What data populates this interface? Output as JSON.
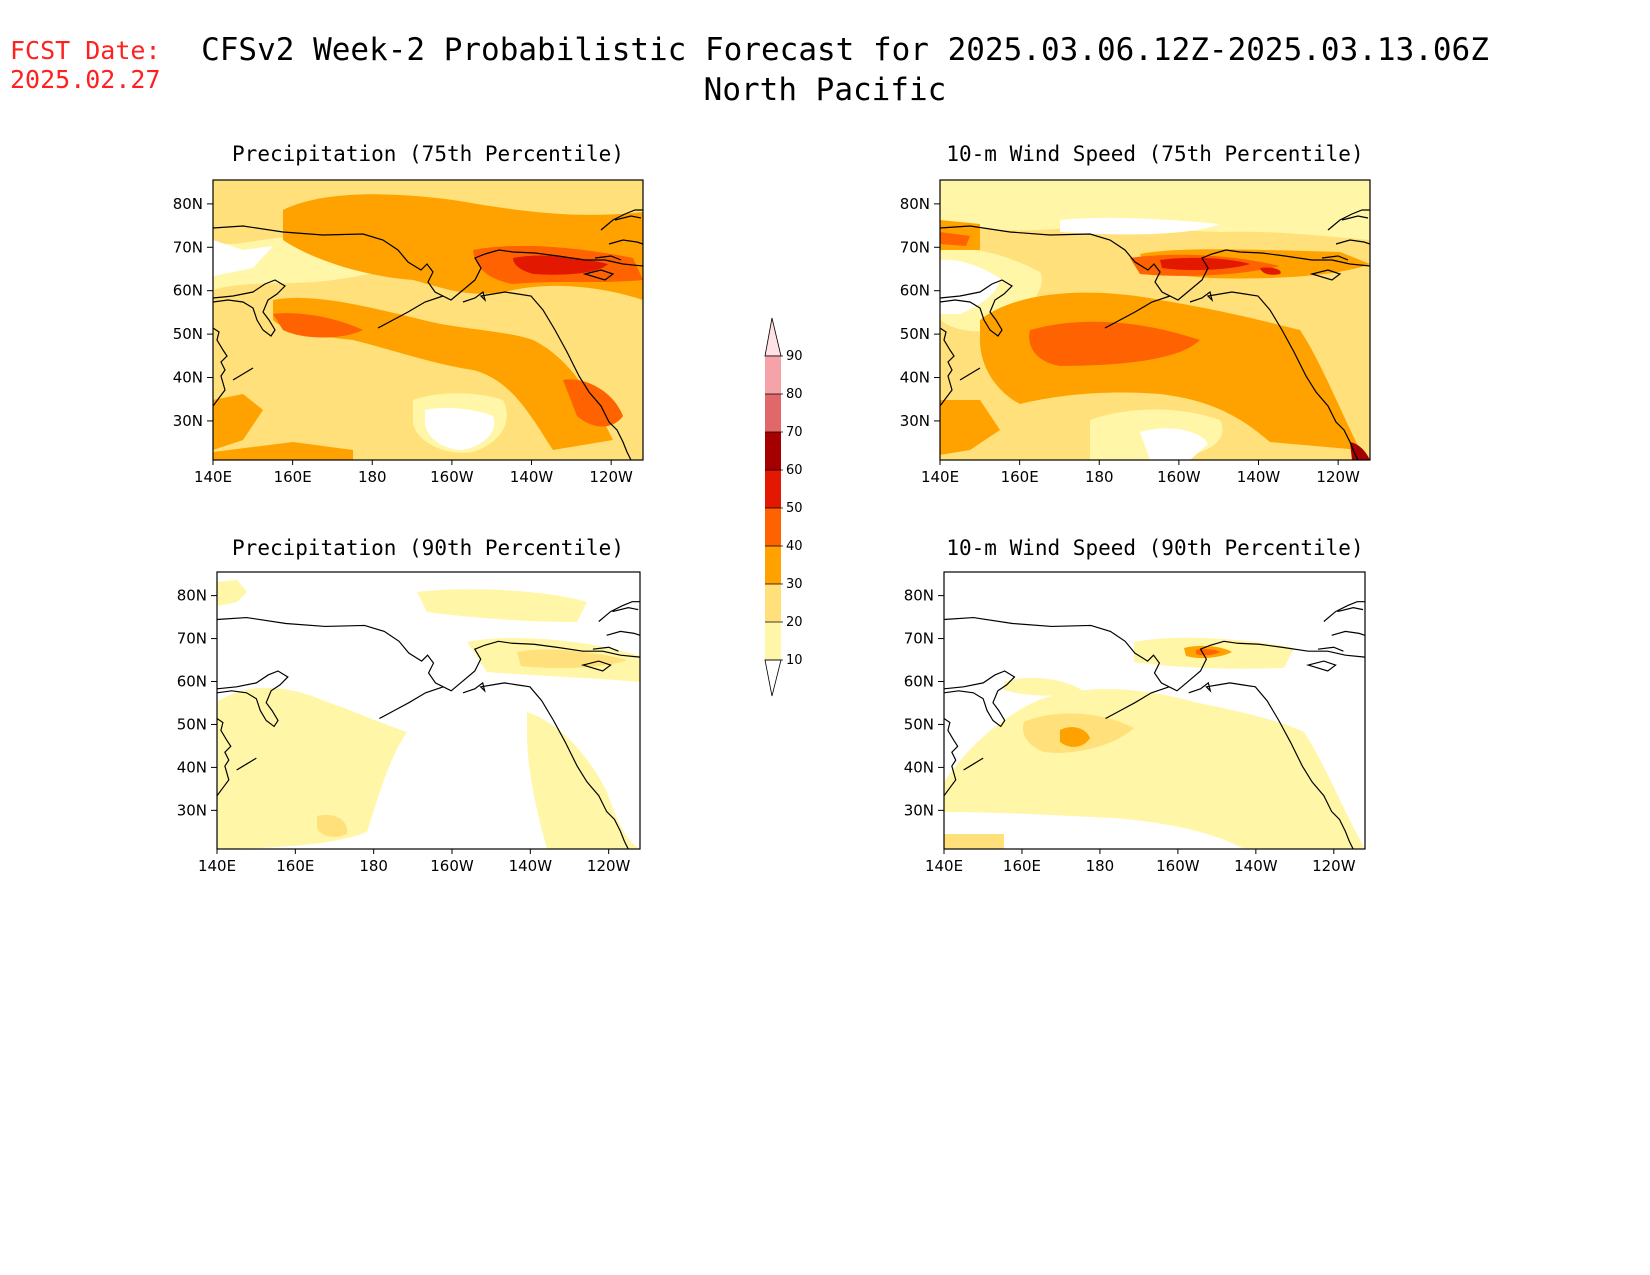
{
  "fcst_label": "FCST Date:",
  "fcst_date": "2025.02.27",
  "title_line1": "CFSv2 Week-2 Probabilistic Forecast for 2025.03.06.12Z-2025.03.13.06Z",
  "title_line2": "North Pacific",
  "colors": {
    "bin_10_20": "#fff6a8",
    "bin_20_30": "#ffe07a",
    "bin_30_40": "#ffa200",
    "bin_40_50": "#ff6200",
    "bin_50_60": "#e21800",
    "bin_60_70": "#a50000",
    "bin_70_80": "#e06868",
    "bin_80_90": "#f5a3a8",
    "bin_90_100": "#ffe0e4"
  },
  "colorbar": {
    "ticks": [
      "10",
      "20",
      "30",
      "40",
      "50",
      "60",
      "70",
      "80",
      "90"
    ]
  },
  "panels": [
    {
      "title": "Precipitation (75th Percentile)",
      "xticks": [
        "140E",
        "160E",
        "180",
        "160W",
        "140W",
        "120W"
      ],
      "yticks": [
        "80N",
        "70N",
        "60N",
        "50N",
        "40N",
        "30N"
      ]
    },
    {
      "title": "10-m Wind Speed (75th Percentile)",
      "xticks": [
        "140E",
        "160E",
        "180",
        "160W",
        "140W",
        "120W"
      ],
      "yticks": [
        "80N",
        "70N",
        "60N",
        "50N",
        "40N",
        "30N"
      ]
    },
    {
      "title": "Precipitation (90th Percentile)",
      "xticks": [
        "140E",
        "160E",
        "180",
        "160W",
        "140W",
        "120W"
      ],
      "yticks": [
        "80N",
        "70N",
        "60N",
        "50N",
        "40N",
        "30N"
      ]
    },
    {
      "title": "10-m Wind Speed (90th Percentile)",
      "xticks": [
        "140E",
        "160E",
        "180",
        "160W",
        "140W",
        "120W"
      ],
      "yticks": [
        "80N",
        "70N",
        "60N",
        "50N",
        "40N",
        "30N"
      ]
    }
  ]
}
